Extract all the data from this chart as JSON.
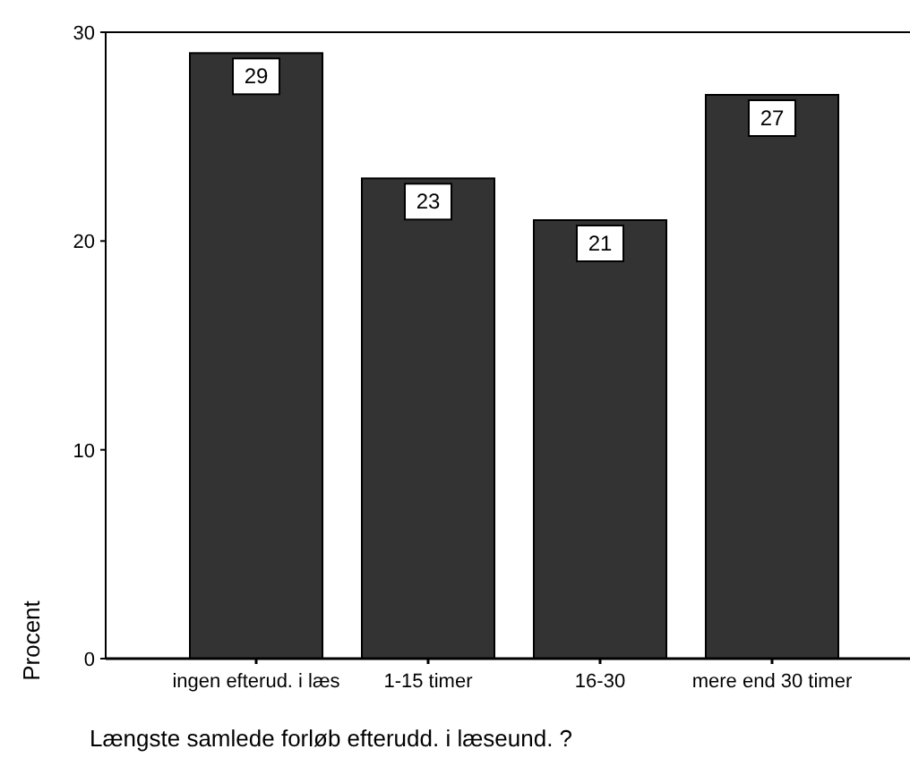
{
  "chart_data": {
    "type": "bar",
    "xlabel": "Længste samlede forløb efterudd. i læseund. ?",
    "ylabel": "Procent",
    "categories": [
      "ingen efterud. i læs",
      "1-15 timer",
      "16-30",
      "mere end 30 timer"
    ],
    "values": [
      29,
      23,
      21,
      27
    ],
    "color": "#333333",
    "ylim": [
      0,
      30
    ],
    "yticks": [
      0,
      10,
      20,
      30
    ],
    "data_labels": true
  }
}
